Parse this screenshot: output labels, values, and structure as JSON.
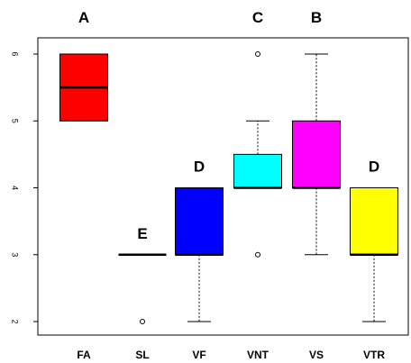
{
  "chart_data": {
    "type": "boxplot",
    "categories": [
      "FA",
      "SL",
      "VF",
      "VNT",
      "VS",
      "VTR"
    ],
    "ylim": [
      2,
      6
    ],
    "yticks": [
      "2",
      "3",
      "4",
      "5",
      "6"
    ],
    "grid": false,
    "boxes": [
      {
        "category": "FA",
        "min": 5,
        "q1": 5,
        "median": 5.5,
        "q3": 6,
        "max": 6,
        "outliers": [],
        "color": "#ff0000",
        "group_letter": "A"
      },
      {
        "category": "SL",
        "min": 3,
        "q1": 3,
        "median": 3,
        "q3": 3,
        "max": 3,
        "outliers": [
          2
        ],
        "color": "#0000ff",
        "group_letter": "E"
      },
      {
        "category": "VF",
        "min": 2,
        "q1": 3,
        "median": 3,
        "q3": 4,
        "max": 4,
        "outliers": [],
        "color": "#0000ff",
        "group_letter": "D"
      },
      {
        "category": "VNT",
        "min": 4,
        "q1": 4,
        "median": 4,
        "q3": 4.5,
        "max": 5,
        "outliers": [
          6,
          3
        ],
        "color": "#00ffff",
        "group_letter": "C"
      },
      {
        "category": "VS",
        "min": 3,
        "q1": 4,
        "median": 4,
        "q3": 5,
        "max": 6,
        "outliers": [],
        "color": "#ff00ff",
        "group_letter": "B"
      },
      {
        "category": "VTR",
        "min": 2,
        "q1": 3,
        "median": 3,
        "q3": 4,
        "max": 4,
        "outliers": [],
        "color": "#ffff00",
        "group_letter": "D"
      }
    ]
  }
}
